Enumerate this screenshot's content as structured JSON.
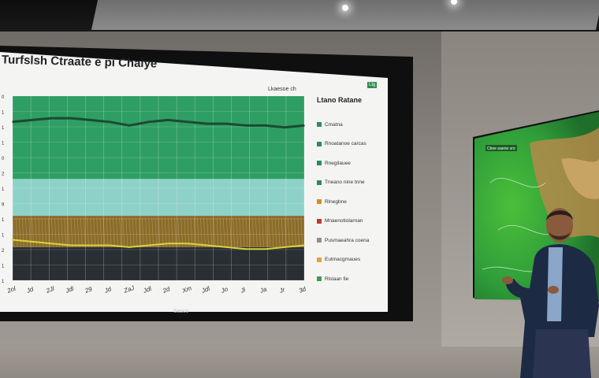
{
  "screen": {
    "title": "Turfslsh Ctraate e pi Chaiye",
    "top_label": "Lkaesoe ch",
    "badge": "Ltg",
    "brand": "Sasco"
  },
  "legend": {
    "title": "Ltano Ratane",
    "items": [
      {
        "label": "Cmatna",
        "color": "#2e8b57"
      },
      {
        "label": "Rnoatanoe carcas",
        "color": "#2e8b57"
      },
      {
        "label": "Rnegilauee",
        "color": "#2e8b57"
      },
      {
        "label": "Tneano nine tnne",
        "color": "#2e8b57"
      },
      {
        "label": "Rlnegbne",
        "color": "#d98a2c"
      },
      {
        "label": "Mnaenotiolarnan",
        "color": "#c0392b"
      },
      {
        "label": "Pusmaeahra coena",
        "color": "#8e8e8e"
      },
      {
        "label": "Eutmacgmaues",
        "color": "#e8a13a"
      },
      {
        "label": "Rlslaan fie",
        "color": "#3a9c4f"
      }
    ]
  },
  "x_labels": [
    "2ol",
    "Jd",
    "2Jl",
    "Jdl",
    "29",
    "Jd",
    "ZaJ",
    "Jdl",
    "2d",
    "Xm",
    "Jdl",
    "Jo",
    "Jl",
    "Ja",
    "Jr",
    "3d"
  ],
  "y_labels": [
    "0",
    "1",
    "1",
    "1",
    "0",
    "2",
    "1",
    "9",
    "1",
    "1",
    "2",
    "1",
    "1"
  ],
  "chart_data": {
    "type": "area",
    "title": "Turfslsh Ctraate e pi Chaiye",
    "x": [
      "2ol",
      "Jd",
      "2Jl",
      "Jdl",
      "29",
      "Jd",
      "ZaJ",
      "Jdl",
      "2d",
      "Xm",
      "Jdl",
      "Jo",
      "Jl",
      "Ja",
      "Jr",
      "3d"
    ],
    "series": [
      {
        "values": [
          0.86,
          0.87,
          0.88,
          0.88,
          0.87,
          0.86,
          0.84,
          0.86,
          0.87,
          0.86,
          0.85,
          0.85,
          0.84,
          0.84,
          0.83,
          0.84
        ]
      },
      {
        "values": [
          0.22,
          0.21,
          0.2,
          0.19,
          0.19,
          0.19,
          0.18,
          0.19,
          0.2,
          0.2,
          0.19,
          0.18,
          0.17,
          0.17,
          0.18,
          0.19
        ]
      }
    ],
    "ylim": [
      0,
      1
    ],
    "grid": true
  },
  "colors": {
    "green_band": "#2f9e63",
    "teal_band": "#8ed1c8",
    "line_dark": "#1c4a30",
    "line_yellow": "#d6d63a",
    "wheat": "#8a6b2c",
    "dark_band": "#2a2f33"
  },
  "map_screen": {
    "header": "Cbne eaerie vro"
  }
}
